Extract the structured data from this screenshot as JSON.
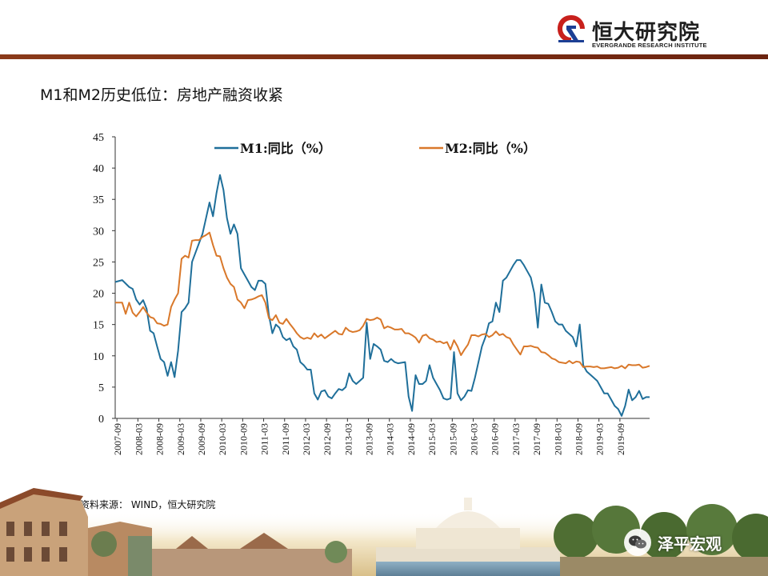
{
  "header": {
    "logo_cn": "恒大研究院",
    "logo_en": "EVERGRANDE RESEARCH INSTITUTE",
    "logo_icon": "evergrande-logo-icon",
    "bar_color": "#7a2c12"
  },
  "page_title": "M1和M2历史低位：房地产融资收紧",
  "source": "资料来源： WIND，恒大研究院",
  "brand": {
    "label": "泽平宏观",
    "icon": "wechat-icon"
  },
  "chart_data": {
    "type": "line",
    "title": "",
    "xlabel": "",
    "ylabel": "",
    "ylim": [
      0,
      45
    ],
    "yticks": [
      0,
      5,
      10,
      15,
      20,
      25,
      30,
      35,
      40,
      45
    ],
    "xticks": [
      "2007-09",
      "2008-03",
      "2008-09",
      "2009-03",
      "2009-09",
      "2010-03",
      "2010-09",
      "2011-03",
      "2011-09",
      "2012-03",
      "2012-09",
      "2013-03",
      "2013-09",
      "2014-03",
      "2014-09",
      "2015-03",
      "2015-09",
      "2016-03",
      "2016-09",
      "2017-03",
      "2017-09",
      "2018-03",
      "2018-09",
      "2019-03",
      "2019-09"
    ],
    "x_start": "2007-09",
    "legend_position": "top",
    "grid": false,
    "series": [
      {
        "name": "M1:同比（%）",
        "color": "#1f6f9a",
        "values": [
          [
            0,
            21.8
          ],
          [
            2,
            22.1
          ],
          [
            4,
            21.0
          ],
          [
            5,
            20.7
          ],
          [
            6,
            19.0
          ],
          [
            7,
            18.2
          ],
          [
            8,
            18.9
          ],
          [
            9,
            17.5
          ],
          [
            10,
            14.0
          ],
          [
            11,
            13.6
          ],
          [
            12,
            11.5
          ],
          [
            13,
            9.5
          ],
          [
            14,
            9.0
          ],
          [
            15,
            6.8
          ],
          [
            16,
            9.0
          ],
          [
            17,
            6.6
          ],
          [
            18,
            10.8
          ],
          [
            19,
            17.0
          ],
          [
            20,
            17.6
          ],
          [
            21,
            18.5
          ],
          [
            22,
            25.0
          ],
          [
            23,
            26.5
          ],
          [
            24,
            28.0
          ],
          [
            25,
            29.5
          ],
          [
            26,
            32.0
          ],
          [
            27,
            34.5
          ],
          [
            28,
            32.3
          ],
          [
            29,
            36.0
          ],
          [
            30,
            38.9
          ],
          [
            31,
            36.5
          ],
          [
            32,
            32.0
          ],
          [
            33,
            29.5
          ],
          [
            34,
            31.0
          ],
          [
            35,
            29.5
          ],
          [
            36,
            24.0
          ],
          [
            37,
            23.0
          ],
          [
            38,
            22.0
          ],
          [
            39,
            21.0
          ],
          [
            40,
            20.5
          ],
          [
            41,
            22.0
          ],
          [
            42,
            22.0
          ],
          [
            43,
            21.5
          ],
          [
            44,
            16.5
          ],
          [
            45,
            13.6
          ],
          [
            46,
            15.0
          ],
          [
            47,
            14.5
          ],
          [
            48,
            13.0
          ],
          [
            49,
            12.5
          ],
          [
            50,
            12.8
          ],
          [
            51,
            11.5
          ],
          [
            52,
            11.0
          ],
          [
            53,
            9.0
          ],
          [
            54,
            8.5
          ],
          [
            55,
            7.8
          ],
          [
            56,
            7.8
          ],
          [
            57,
            4.0
          ],
          [
            58,
            3.0
          ],
          [
            59,
            4.3
          ],
          [
            60,
            4.5
          ],
          [
            61,
            3.5
          ],
          [
            62,
            3.2
          ],
          [
            63,
            4.0
          ],
          [
            64,
            4.7
          ],
          [
            65,
            4.5
          ],
          [
            66,
            5.0
          ],
          [
            67,
            7.2
          ],
          [
            68,
            6.0
          ],
          [
            69,
            5.5
          ],
          [
            70,
            6.0
          ],
          [
            71,
            6.5
          ],
          [
            72,
            15.3
          ],
          [
            73,
            9.5
          ],
          [
            74,
            11.9
          ],
          [
            75,
            11.5
          ],
          [
            76,
            11.0
          ],
          [
            77,
            9.2
          ],
          [
            78,
            9.0
          ],
          [
            79,
            9.5
          ],
          [
            80,
            9.0
          ],
          [
            81,
            8.8
          ],
          [
            82,
            8.9
          ],
          [
            83,
            9.0
          ],
          [
            84,
            3.5
          ],
          [
            85,
            1.2
          ],
          [
            86,
            6.9
          ],
          [
            87,
            5.5
          ],
          [
            88,
            5.5
          ],
          [
            89,
            6.0
          ],
          [
            90,
            8.5
          ],
          [
            91,
            6.5
          ],
          [
            92,
            5.5
          ],
          [
            93,
            4.5
          ],
          [
            94,
            3.2
          ],
          [
            95,
            3.0
          ],
          [
            96,
            3.2
          ],
          [
            97,
            10.6
          ],
          [
            98,
            4.0
          ],
          [
            99,
            2.9
          ],
          [
            100,
            3.5
          ],
          [
            101,
            4.5
          ],
          [
            102,
            4.4
          ],
          [
            103,
            6.5
          ],
          [
            104,
            9.0
          ],
          [
            105,
            11.5
          ],
          [
            106,
            13.0
          ],
          [
            107,
            15.2
          ],
          [
            108,
            15.5
          ],
          [
            109,
            18.5
          ],
          [
            110,
            17.0
          ],
          [
            111,
            22.0
          ],
          [
            112,
            22.5
          ],
          [
            113,
            23.5
          ],
          [
            114,
            24.5
          ],
          [
            115,
            25.3
          ],
          [
            116,
            25.3
          ],
          [
            117,
            24.5
          ],
          [
            118,
            23.5
          ],
          [
            119,
            22.5
          ],
          [
            120,
            20.0
          ],
          [
            121,
            14.5
          ],
          [
            122,
            21.4
          ],
          [
            123,
            18.5
          ],
          [
            124,
            18.3
          ],
          [
            125,
            17.0
          ],
          [
            126,
            15.5
          ],
          [
            127,
            15.0
          ],
          [
            128,
            15.0
          ],
          [
            129,
            14.0
          ],
          [
            130,
            13.5
          ],
          [
            131,
            13.0
          ],
          [
            132,
            11.5
          ],
          [
            133,
            15.0
          ],
          [
            134,
            8.5
          ],
          [
            135,
            7.5
          ],
          [
            136,
            7.0
          ],
          [
            137,
            6.5
          ],
          [
            138,
            6.0
          ],
          [
            139,
            5.0
          ],
          [
            140,
            4.0
          ],
          [
            141,
            4.0
          ],
          [
            142,
            3.0
          ],
          [
            143,
            2.0
          ],
          [
            144,
            1.5
          ],
          [
            145,
            0.4
          ],
          [
            146,
            2.0
          ],
          [
            147,
            4.6
          ],
          [
            148,
            2.9
          ],
          [
            149,
            3.4
          ],
          [
            150,
            4.4
          ],
          [
            151,
            3.1
          ],
          [
            152,
            3.4
          ],
          [
            153,
            3.4
          ]
        ]
      },
      {
        "name": "M2:同比（%）",
        "color": "#d9782a",
        "values": [
          [
            0,
            18.5
          ],
          [
            2,
            18.5
          ],
          [
            3,
            16.7
          ],
          [
            4,
            18.5
          ],
          [
            5,
            16.9
          ],
          [
            6,
            16.3
          ],
          [
            7,
            17.0
          ],
          [
            8,
            17.8
          ],
          [
            9,
            16.9
          ],
          [
            10,
            16.2
          ],
          [
            11,
            16.0
          ],
          [
            12,
            15.2
          ],
          [
            13,
            15.1
          ],
          [
            14,
            14.8
          ],
          [
            15,
            15.0
          ],
          [
            16,
            17.8
          ],
          [
            17,
            19.0
          ],
          [
            18,
            20.0
          ],
          [
            19,
            25.5
          ],
          [
            20,
            26.0
          ],
          [
            21,
            25.7
          ],
          [
            22,
            28.4
          ],
          [
            23,
            28.5
          ],
          [
            24,
            28.5
          ],
          [
            25,
            29.0
          ],
          [
            26,
            29.3
          ],
          [
            27,
            29.7
          ],
          [
            28,
            27.7
          ],
          [
            29,
            26.0
          ],
          [
            30,
            25.9
          ],
          [
            31,
            24.0
          ],
          [
            32,
            22.5
          ],
          [
            33,
            21.5
          ],
          [
            34,
            21.0
          ],
          [
            35,
            19.0
          ],
          [
            36,
            18.5
          ],
          [
            37,
            17.6
          ],
          [
            38,
            18.9
          ],
          [
            39,
            19.0
          ],
          [
            40,
            19.2
          ],
          [
            41,
            19.5
          ],
          [
            42,
            19.7
          ],
          [
            43,
            18.5
          ],
          [
            44,
            16.0
          ],
          [
            45,
            15.7
          ],
          [
            46,
            16.5
          ],
          [
            47,
            15.3
          ],
          [
            48,
            15.1
          ],
          [
            49,
            15.9
          ],
          [
            50,
            15.1
          ],
          [
            51,
            14.4
          ],
          [
            52,
            13.6
          ],
          [
            53,
            13.0
          ],
          [
            54,
            12.7
          ],
          [
            55,
            12.9
          ],
          [
            56,
            12.7
          ],
          [
            57,
            13.6
          ],
          [
            58,
            13.0
          ],
          [
            59,
            13.4
          ],
          [
            60,
            12.8
          ],
          [
            61,
            13.2
          ],
          [
            62,
            13.6
          ],
          [
            63,
            14.0
          ],
          [
            64,
            13.5
          ],
          [
            65,
            13.4
          ],
          [
            66,
            14.5
          ],
          [
            67,
            14.0
          ],
          [
            68,
            13.8
          ],
          [
            69,
            13.9
          ],
          [
            70,
            14.1
          ],
          [
            71,
            14.8
          ],
          [
            72,
            15.9
          ],
          [
            73,
            15.7
          ],
          [
            74,
            15.8
          ],
          [
            75,
            16.1
          ],
          [
            76,
            15.8
          ],
          [
            77,
            14.4
          ],
          [
            78,
            14.7
          ],
          [
            79,
            14.5
          ],
          [
            80,
            14.2
          ],
          [
            81,
            14.2
          ],
          [
            82,
            14.3
          ],
          [
            83,
            13.6
          ],
          [
            84,
            13.6
          ],
          [
            85,
            13.3
          ],
          [
            86,
            12.9
          ],
          [
            87,
            12.1
          ],
          [
            88,
            13.2
          ],
          [
            89,
            13.4
          ],
          [
            90,
            12.8
          ],
          [
            91,
            12.6
          ],
          [
            92,
            12.2
          ],
          [
            93,
            12.3
          ],
          [
            94,
            12.0
          ],
          [
            95,
            12.2
          ],
          [
            96,
            11.0
          ],
          [
            97,
            12.5
          ],
          [
            98,
            11.5
          ],
          [
            99,
            10.1
          ],
          [
            100,
            11.0
          ],
          [
            101,
            11.8
          ],
          [
            102,
            13.3
          ],
          [
            103,
            13.3
          ],
          [
            104,
            13.1
          ],
          [
            105,
            13.4
          ],
          [
            106,
            13.5
          ],
          [
            107,
            13.0
          ],
          [
            108,
            13.3
          ],
          [
            109,
            13.9
          ],
          [
            110,
            13.3
          ],
          [
            111,
            13.5
          ],
          [
            112,
            13.0
          ],
          [
            113,
            12.8
          ],
          [
            114,
            11.8
          ],
          [
            115,
            11.0
          ],
          [
            116,
            10.2
          ],
          [
            117,
            11.5
          ],
          [
            118,
            11.5
          ],
          [
            119,
            11.6
          ],
          [
            120,
            11.4
          ],
          [
            121,
            11.3
          ],
          [
            122,
            10.6
          ],
          [
            123,
            10.5
          ],
          [
            124,
            10.1
          ],
          [
            125,
            9.6
          ],
          [
            126,
            9.4
          ],
          [
            127,
            9.0
          ],
          [
            128,
            8.9
          ],
          [
            129,
            8.8
          ],
          [
            130,
            9.2
          ],
          [
            131,
            8.8
          ],
          [
            132,
            9.1
          ],
          [
            133,
            9.0
          ],
          [
            134,
            8.2
          ],
          [
            135,
            8.3
          ],
          [
            136,
            8.3
          ],
          [
            137,
            8.2
          ],
          [
            138,
            8.3
          ],
          [
            139,
            8.0
          ],
          [
            140,
            8.0
          ],
          [
            141,
            8.1
          ],
          [
            142,
            8.2
          ],
          [
            143,
            8.0
          ],
          [
            144,
            8.1
          ],
          [
            145,
            8.4
          ],
          [
            146,
            8.0
          ],
          [
            147,
            8.6
          ],
          [
            148,
            8.5
          ],
          [
            149,
            8.5
          ],
          [
            150,
            8.6
          ],
          [
            151,
            8.1
          ],
          [
            152,
            8.2
          ],
          [
            153,
            8.4
          ]
        ]
      }
    ]
  }
}
